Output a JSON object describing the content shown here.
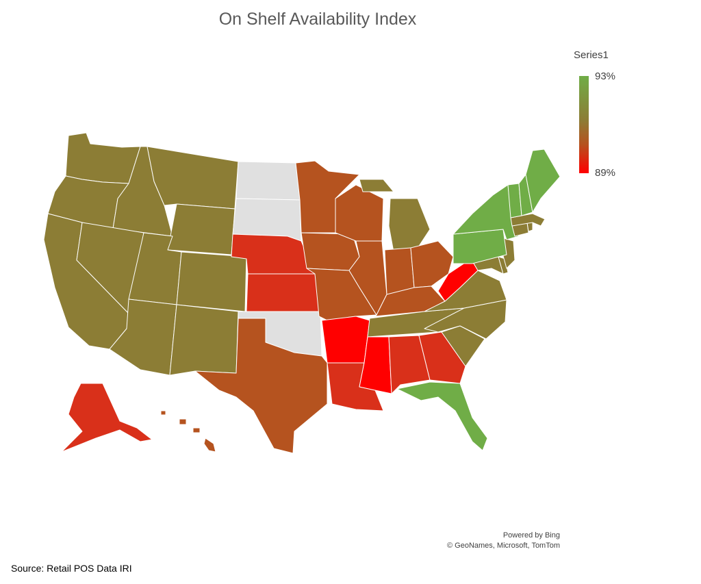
{
  "title": "On Shelf Availability Index",
  "legend": {
    "series_name": "Series1",
    "max_label": "93%",
    "min_label": "89%",
    "max_color": "#70AD47",
    "mid_color": "#8C7D35",
    "low_mid_color": "#B5531F",
    "min_color": "#FF0000",
    "nodata_color": "#E0E0E0"
  },
  "attribution": {
    "line1": "Powered by Bing",
    "line2": "© GeoNames, Microsoft, TomTom"
  },
  "source_note": "Source: Retail POS Data IRI",
  "colors": {
    "green": "#70AD47",
    "olive": "#8C7D35",
    "rust": "#B5531F",
    "redorange": "#D9301A",
    "red": "#FF0000",
    "nodata": "#E0E0E0"
  },
  "states": {
    "Washington": "olive",
    "Oregon": "olive",
    "California": "olive",
    "Idaho": "olive",
    "Nevada": "olive",
    "Montana": "olive",
    "Wyoming": "olive",
    "Utah": "olive",
    "Colorado": "olive",
    "Arizona": "olive",
    "New Mexico": "olive",
    "North Dakota": "nodata",
    "South Dakota": "nodata",
    "Nebraska": "redorange",
    "Kansas": "redorange",
    "Oklahoma": "nodata",
    "Texas": "rust",
    "Minnesota": "rust",
    "Iowa": "rust",
    "Missouri": "rust",
    "Arkansas": "red",
    "Louisiana": "redorange",
    "Wisconsin": "rust",
    "Illinois": "rust",
    "Michigan": "olive",
    "Indiana": "rust",
    "Ohio": "rust",
    "Kentucky": "rust",
    "Tennessee": "olive",
    "Mississippi": "red",
    "Alabama": "redorange",
    "Georgia": "redorange",
    "Florida": "green",
    "South Carolina": "olive",
    "North Carolina": "olive",
    "Virginia": "olive",
    "West Virginia": "red",
    "Maryland": "olive",
    "Delaware": "olive",
    "New Jersey": "olive",
    "Pennsylvania": "green",
    "New York": "green",
    "Connecticut": "olive",
    "Rhode Island": "olive",
    "Massachusetts": "olive",
    "Vermont": "green",
    "New Hampshire": "green",
    "Maine": "green",
    "Alaska": "redorange",
    "Hawaii": "rust"
  }
}
